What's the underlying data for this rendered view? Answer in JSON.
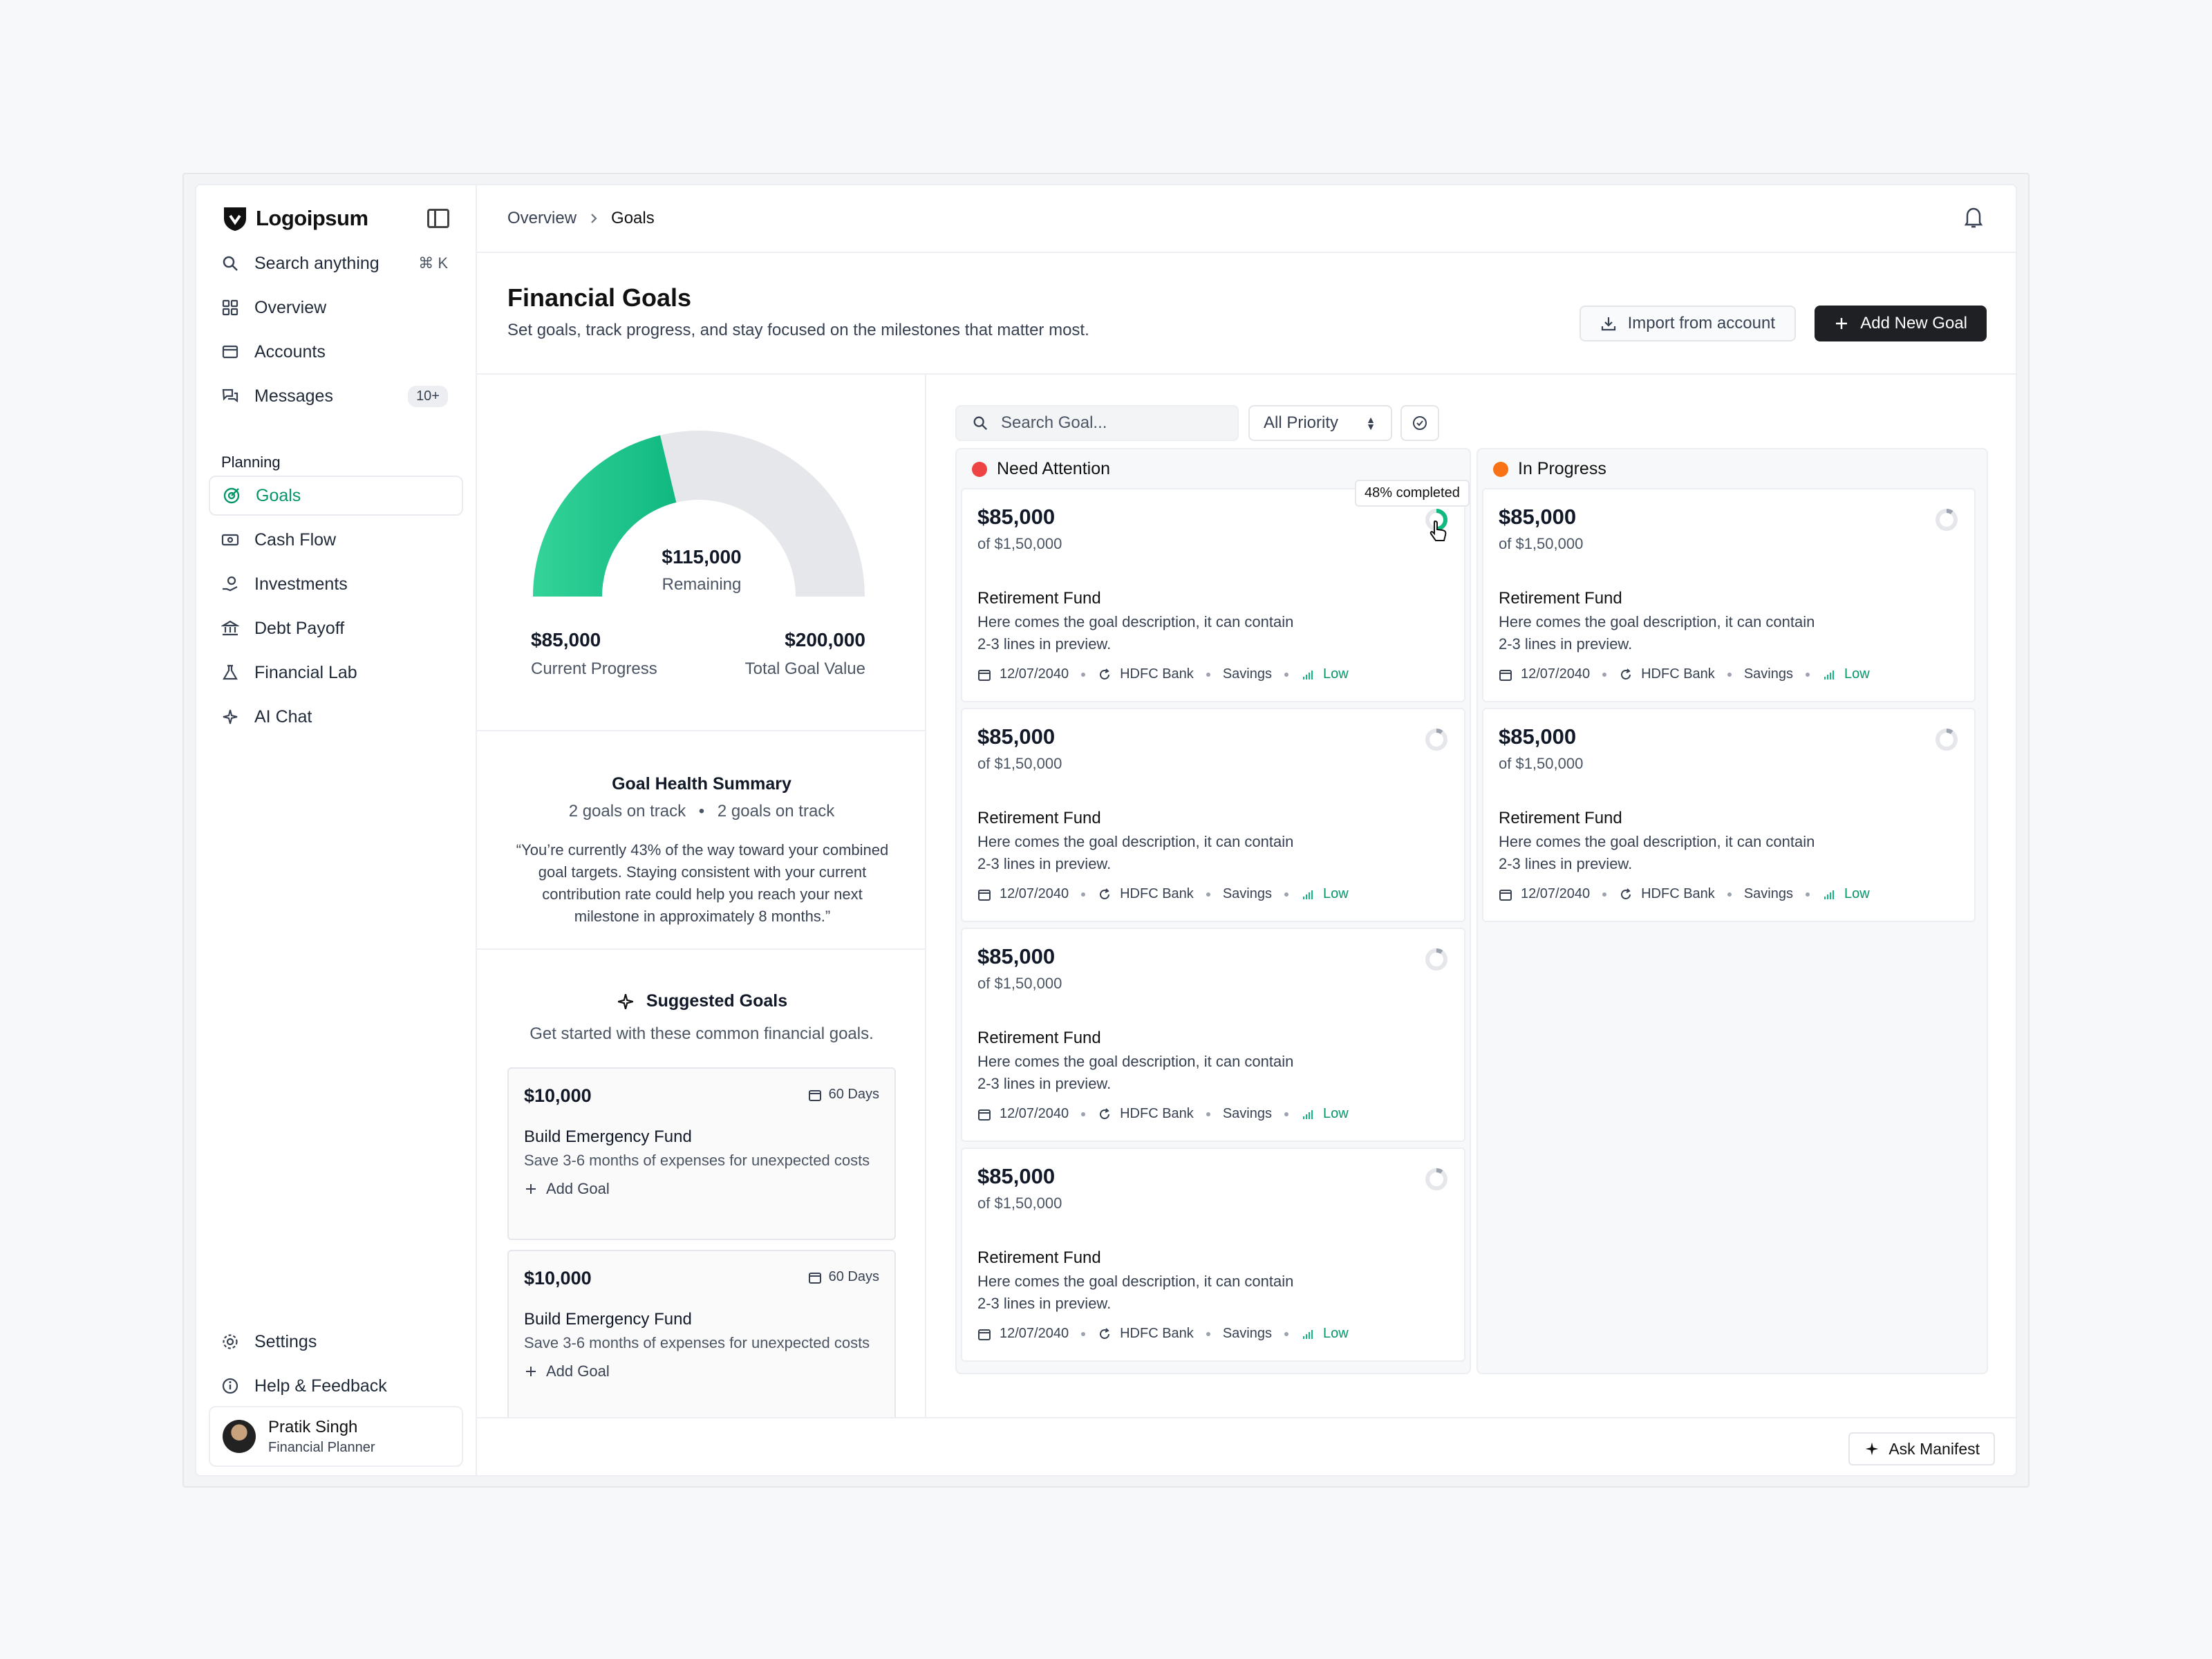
{
  "brand": {
    "name": "Logoipsum"
  },
  "search": {
    "label": "Search anything",
    "shortcut": "⌘ K"
  },
  "nav": {
    "overview": "Overview",
    "accounts": "Accounts",
    "messages": "Messages",
    "messages_badge": "10+",
    "section": "Planning",
    "goals": "Goals",
    "cashflow": "Cash Flow",
    "investments": "Investments",
    "debt": "Debt Payoff",
    "lab": "Financial Lab",
    "ai": "AI Chat",
    "settings": "Settings",
    "help": "Help & Feedback"
  },
  "user": {
    "name": "Pratik Singh",
    "role": "Financial Planner"
  },
  "breadcrumb": {
    "parent": "Overview",
    "current": "Goals"
  },
  "page": {
    "title": "Financial Goals",
    "subtitle": "Set goals, track progress, and stay focused on the milestones that matter most.",
    "import_label": "Import from account",
    "add_label": "Add New Goal"
  },
  "gauge": {
    "progress_fraction": 0.425,
    "remaining_amount": "$115,000",
    "remaining_label": "Remaining",
    "current_value": "$85,000",
    "current_label": "Current Progress",
    "total_value": "$200,000",
    "total_label": "Total Goal Value",
    "fill_color": "#10b981",
    "track_color": "#e5e7eb"
  },
  "health": {
    "title": "Goal Health Summary",
    "stat_a": "2 goals on track",
    "stat_b": "2 goals on track",
    "quote": "“You’re currently 43% of the way toward your combined goal targets. Staying consistent with your current contribution rate could help you reach your next milestone in approximately 8 months.”"
  },
  "suggested": {
    "title": "Suggested Goals",
    "subtitle": "Get started with these common financial goals.",
    "items": [
      {
        "amount": "$10,000",
        "days": "60 Days",
        "name": "Build Emergency Fund",
        "desc": "Save 3-6 months of expenses for unexpected costs",
        "action": "Add Goal"
      },
      {
        "amount": "$10,000",
        "days": "60 Days",
        "name": "Build Emergency Fund",
        "desc": "Save 3-6 months of expenses for unexpected costs",
        "action": "Add Goal"
      }
    ]
  },
  "board": {
    "search_placeholder": "Search Goal...",
    "priority_label": "All Priority",
    "tooltip": "48% completed",
    "columns": [
      {
        "title": "Need Attention",
        "color": "#ef4444"
      },
      {
        "title": "In Progress",
        "color": "#f97316"
      }
    ],
    "card": {
      "amount": "$85,000",
      "of": "of $1,50,000",
      "name": "Retirement Fund",
      "desc": "Here comes the goal description, it can contain 2-3 lines in preview.",
      "date": "12/07/2040",
      "bank": "HDFC Bank",
      "type": "Savings",
      "priority": "Low"
    }
  },
  "footer": {
    "ask": "Ask Manifest"
  }
}
